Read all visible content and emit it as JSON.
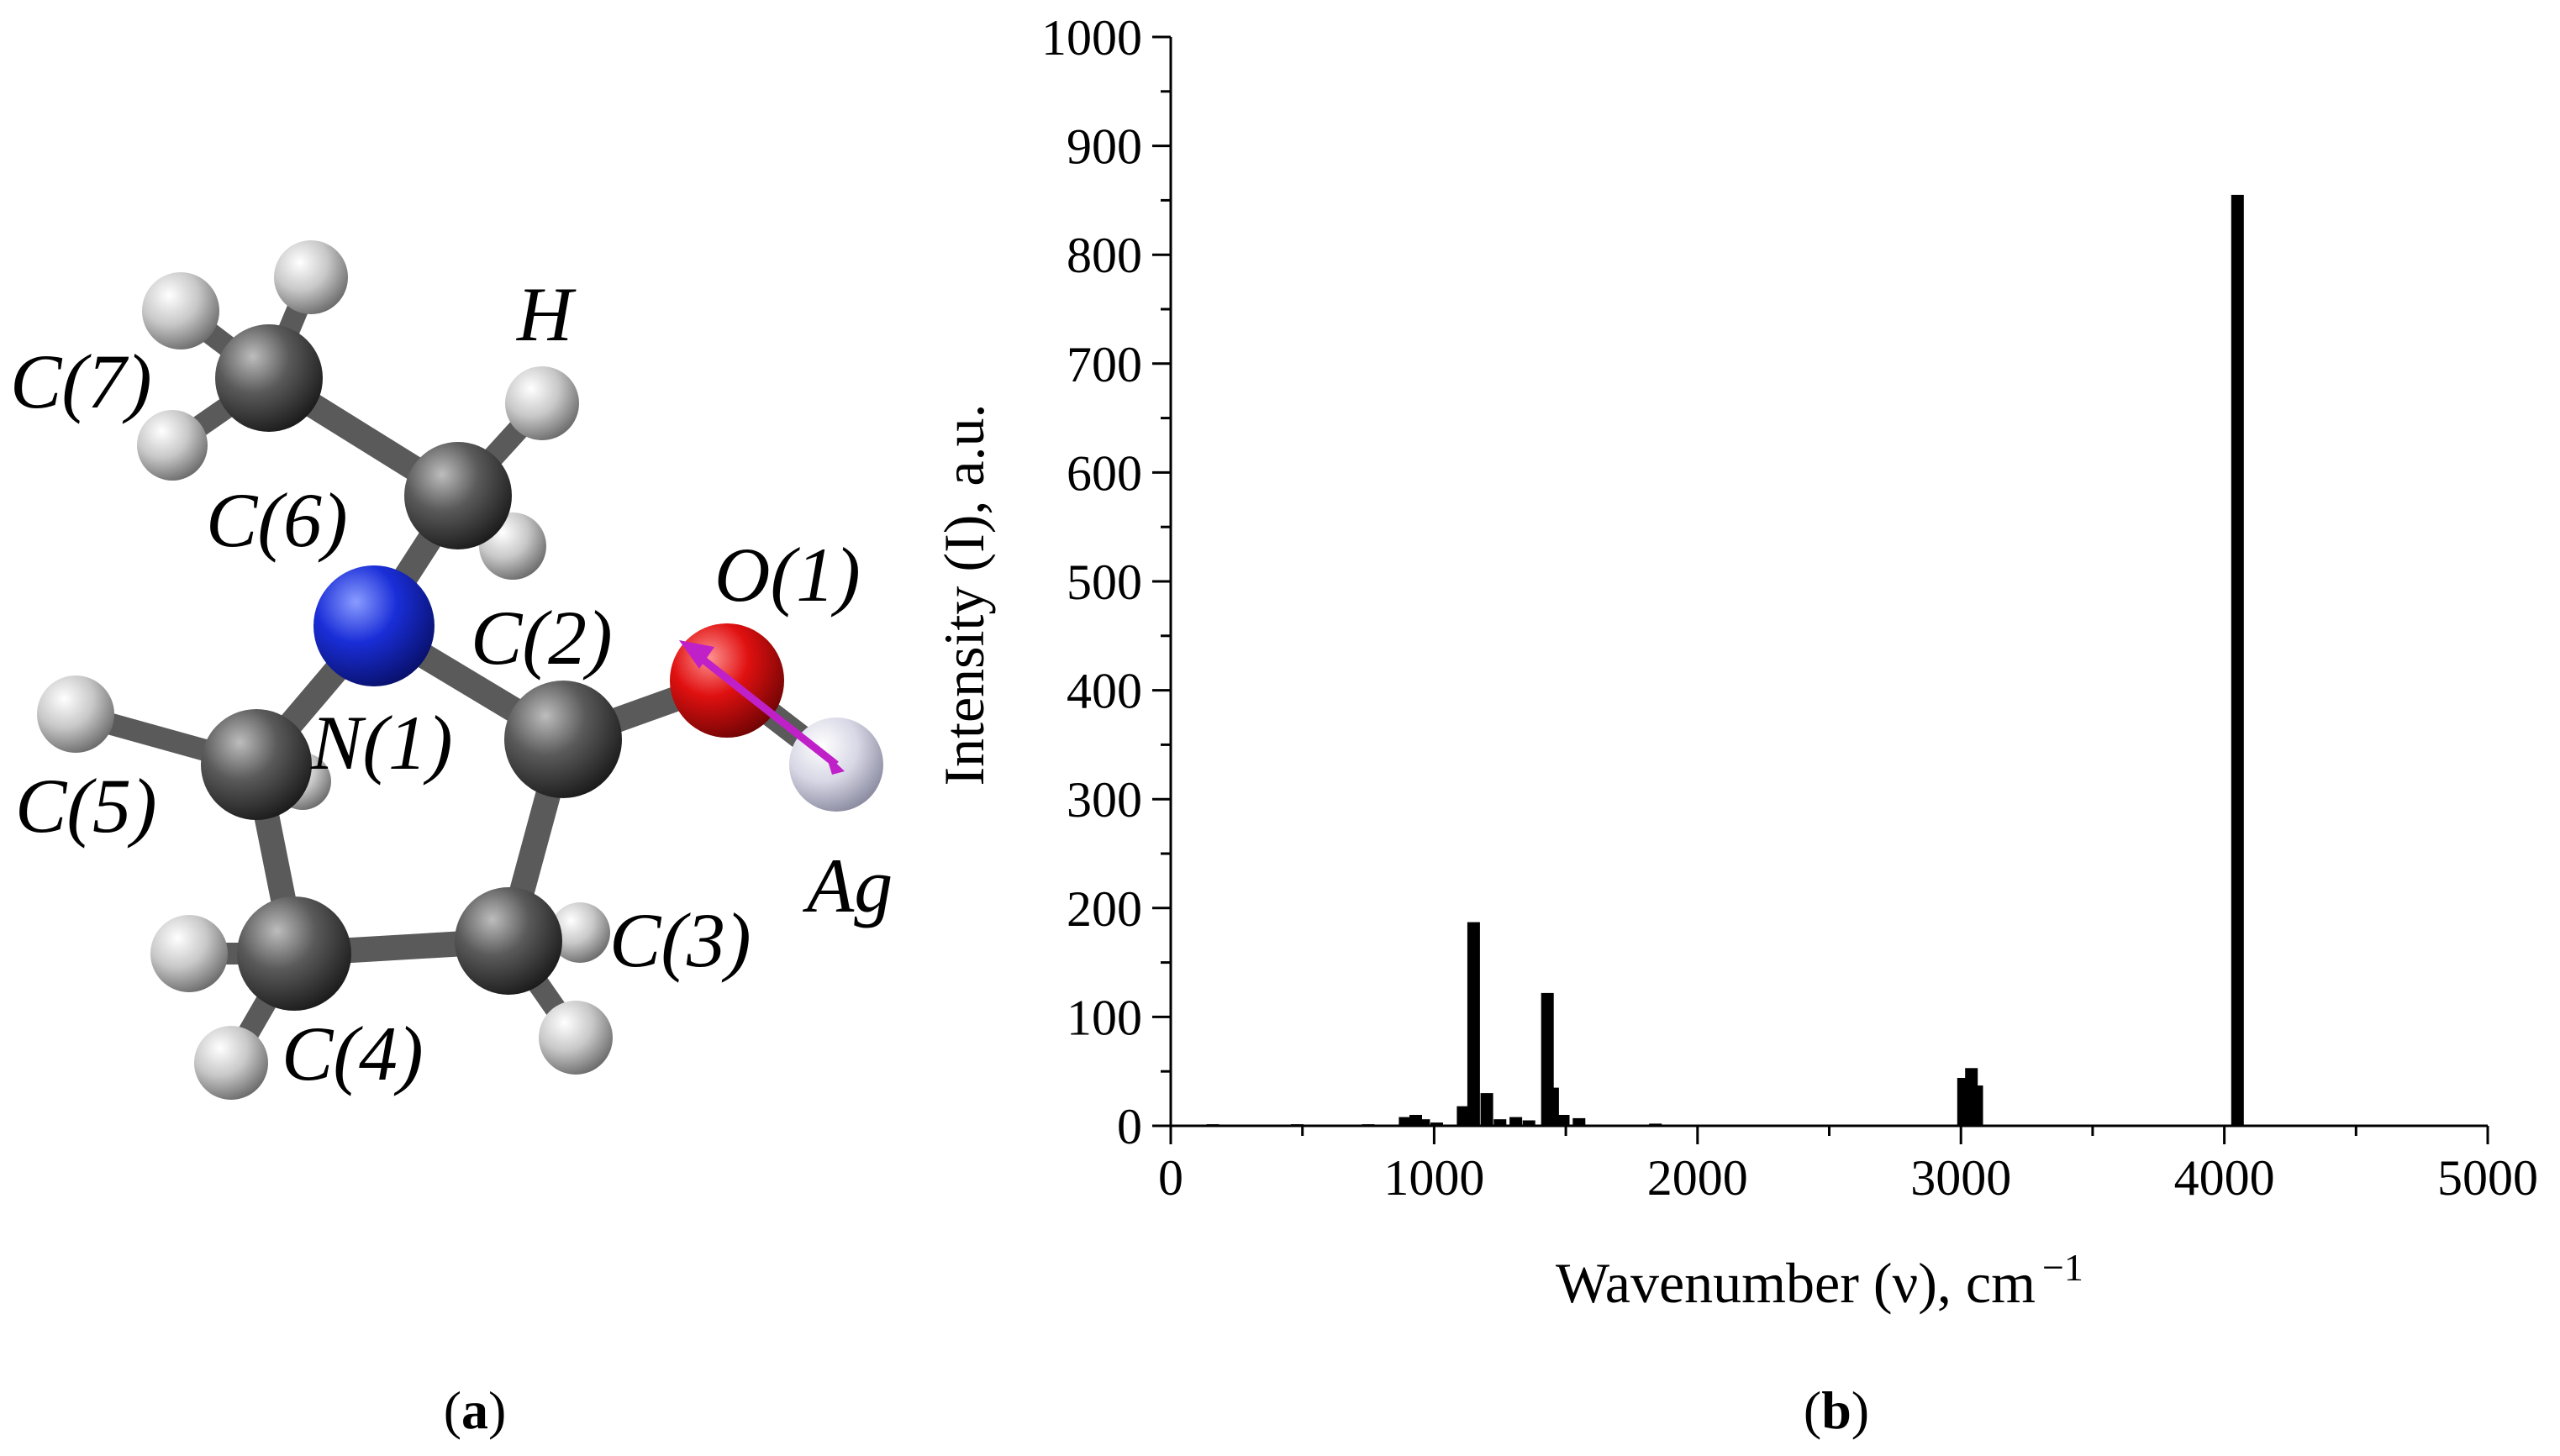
{
  "panels": {
    "a": {
      "label_open": "(",
      "label_letter": "a",
      "label_close": ")"
    },
    "b": {
      "label_open": "(",
      "label_letter": "b",
      "label_close": ")"
    }
  },
  "molecule": {
    "atom_labels": {
      "c7": "C(7)",
      "h": "H",
      "c6": "C(6)",
      "o1": "O(1)",
      "c2": "C(2)",
      "n1": "N(1)",
      "c5": "C(5)",
      "ag": "Ag",
      "c3": "C(3)",
      "c4": "C(4)"
    },
    "colors": {
      "carbon": "#4a4a4a",
      "hydrogen": "#d0d0d0",
      "nitrogen": "#1a2ed8",
      "oxygen": "#e01010",
      "silver": "#d8d8e6",
      "bond": "#5a5a5a",
      "arrow": "#c020c8"
    }
  },
  "chart_data": {
    "type": "bar",
    "xlabel": "Wavenumber (ν), cm",
    "xlabel_sup": "−1",
    "ylabel": "Intensity (I), a.u.",
    "xlim": [
      0,
      5000
    ],
    "ylim": [
      0,
      1000
    ],
    "xticks": [
      0,
      1000,
      2000,
      3000,
      4000,
      5000
    ],
    "yticks": [
      0,
      100,
      200,
      300,
      400,
      500,
      600,
      700,
      800,
      900,
      1000
    ],
    "bar_color": "#000000",
    "grid": false,
    "bars": [
      {
        "x": 160,
        "y": 1.5
      },
      {
        "x": 480,
        "y": 1.5
      },
      {
        "x": 750,
        "y": 1.5
      },
      {
        "x": 890,
        "y": 8
      },
      {
        "x": 930,
        "y": 10
      },
      {
        "x": 960,
        "y": 6
      },
      {
        "x": 1010,
        "y": 3
      },
      {
        "x": 1110,
        "y": 18
      },
      {
        "x": 1150,
        "y": 187
      },
      {
        "x": 1200,
        "y": 30
      },
      {
        "x": 1250,
        "y": 6
      },
      {
        "x": 1310,
        "y": 8
      },
      {
        "x": 1360,
        "y": 5
      },
      {
        "x": 1430,
        "y": 122
      },
      {
        "x": 1450,
        "y": 35
      },
      {
        "x": 1490,
        "y": 10
      },
      {
        "x": 1550,
        "y": 7
      },
      {
        "x": 1840,
        "y": 2
      },
      {
        "x": 3010,
        "y": 44
      },
      {
        "x": 3040,
        "y": 53
      },
      {
        "x": 3060,
        "y": 37
      },
      {
        "x": 4050,
        "y": 855
      }
    ]
  }
}
